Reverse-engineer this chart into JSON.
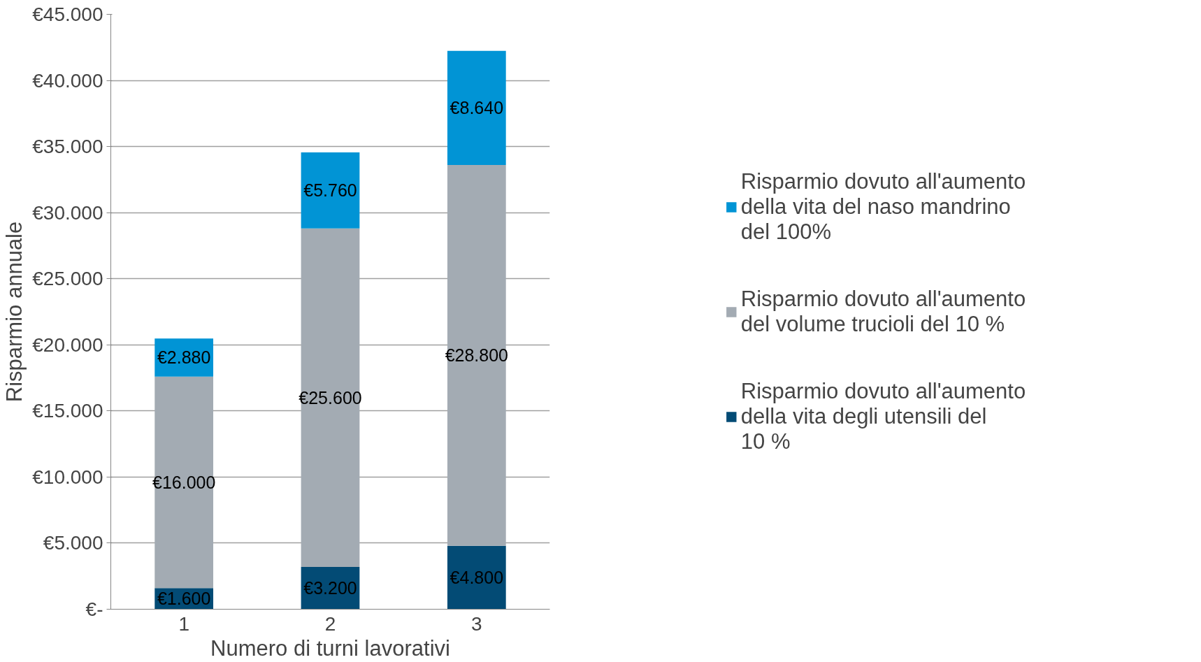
{
  "chart_data": {
    "type": "bar",
    "stacked": true,
    "xlabel": "Numero di turni lavorativi",
    "ylabel": "Risparmio annuale",
    "categories": [
      "1",
      "2",
      "3"
    ],
    "series": [
      {
        "name": "Risparmio dovuto all'aumento della vita degli utensili del  10 %",
        "color": "#034b75",
        "values": [
          1600,
          3200,
          4800
        ],
        "value_labels": [
          "€1.600",
          "€3.200",
          "€4.800"
        ]
      },
      {
        "name": "Risparmio dovuto all'aumento del volume trucioli del 10 %",
        "color": "#a3abb3",
        "values": [
          16000,
          25600,
          28800
        ],
        "value_labels": [
          "€16.000",
          "€25.600",
          "€28.800"
        ]
      },
      {
        "name": "Risparmio dovuto all'aumento della vita del naso mandrino del 100%",
        "color": "#0194d5",
        "values": [
          2880,
          5760,
          8640
        ],
        "value_labels": [
          "€2.880",
          "€5.760",
          "€8.640"
        ]
      }
    ],
    "ylim": [
      0,
      45000
    ],
    "yticks": [
      {
        "value": 0,
        "label": "€-"
      },
      {
        "value": 5000,
        "label": "€5.000"
      },
      {
        "value": 10000,
        "label": "€10.000"
      },
      {
        "value": 15000,
        "label": "€15.000"
      },
      {
        "value": 20000,
        "label": "€20.000"
      },
      {
        "value": 25000,
        "label": "€25.000"
      },
      {
        "value": 30000,
        "label": "€30.000"
      },
      {
        "value": 35000,
        "label": "€35.000"
      },
      {
        "value": 40000,
        "label": "€40.000"
      },
      {
        "value": 45000,
        "label": "€45.000"
      }
    ],
    "grid": "y",
    "legend": "right"
  }
}
